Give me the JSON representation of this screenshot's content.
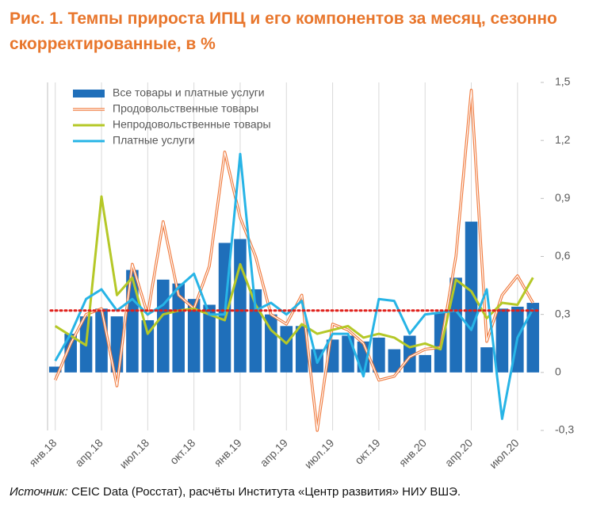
{
  "chart_data": {
    "type": "bar-line",
    "title": "Рис. 1. Темпы прироста ИПЦ и его компонентов за месяц, сезонно скорректированные, в %",
    "source_label": "Источник:",
    "source": "CEIC Data (Росстат), расчёты Института «Центр развития» НИУ ВШЭ.",
    "categories": [
      "янв.18",
      null,
      null,
      "апр.18",
      null,
      null,
      "июл.18",
      null,
      null,
      "окт.18",
      null,
      null,
      "янв.19",
      null,
      null,
      "апр.19",
      null,
      null,
      "июл.19",
      null,
      null,
      "окт.19",
      null,
      null,
      "янв.20",
      null,
      null,
      "апр.20",
      null,
      null,
      "июл.20",
      null
    ],
    "series": [
      {
        "name": "Все товары и платные услуги",
        "kind": "bar",
        "color": "#1f6fba",
        "values": [
          0.03,
          0.2,
          0.29,
          0.33,
          0.29,
          0.53,
          0.27,
          0.48,
          0.46,
          0.38,
          0.35,
          0.67,
          0.69,
          0.43,
          0.3,
          0.24,
          0.24,
          0.12,
          0.17,
          0.19,
          0.16,
          0.18,
          0.12,
          0.19,
          0.09,
          0.31,
          0.49,
          0.78,
          0.13,
          0.33,
          0.34,
          0.36
        ]
      },
      {
        "name": "Продовольственные товары",
        "kind": "hollow-line",
        "color": "#f07b3f",
        "values": [
          -0.04,
          0.15,
          0.3,
          0.33,
          -0.07,
          0.56,
          0.3,
          0.78,
          0.4,
          0.33,
          0.55,
          1.14,
          0.8,
          0.6,
          0.3,
          0.25,
          0.4,
          -0.3,
          0.25,
          0.22,
          0.15,
          -0.04,
          -0.02,
          0.08,
          0.12,
          0.13,
          0.6,
          1.46,
          0.16,
          0.4,
          0.5,
          0.36
        ]
      },
      {
        "name": "Непродовольственные товары",
        "kind": "line",
        "color": "#b5c827",
        "values": [
          0.24,
          0.19,
          0.14,
          0.91,
          0.4,
          0.49,
          0.2,
          0.3,
          0.32,
          0.33,
          0.3,
          0.27,
          0.56,
          0.35,
          0.22,
          0.15,
          0.25,
          0.2,
          0.22,
          0.24,
          0.18,
          0.2,
          0.18,
          0.13,
          0.15,
          0.12,
          0.48,
          0.42,
          0.28,
          0.36,
          0.35,
          0.49
        ]
      },
      {
        "name": "Платные услуги",
        "kind": "line",
        "color": "#27b4e6",
        "values": [
          0.06,
          0.2,
          0.38,
          0.43,
          0.32,
          0.38,
          0.3,
          0.35,
          0.44,
          0.51,
          0.3,
          0.3,
          1.13,
          0.32,
          0.36,
          0.3,
          0.37,
          0.05,
          0.2,
          0.2,
          -0.02,
          0.38,
          0.37,
          0.2,
          0.3,
          0.31,
          0.32,
          0.22,
          0.43,
          -0.24,
          0.18,
          0.33
        ]
      }
    ],
    "reference_line": 0.32,
    "reference_color": "#e0201b",
    "ylim": [
      -0.3,
      1.5
    ],
    "yticks": [
      {
        "value": -0.3,
        "label": "-0,3"
      },
      0,
      {
        "value": 0.3,
        "label": "0,3"
      },
      {
        "value": 0.6,
        "label": "0,6"
      },
      {
        "value": 0.9,
        "label": "0,9"
      },
      {
        "value": 1.2,
        "label": "1,2"
      },
      {
        "value": 1.5,
        "label": "1,5"
      }
    ],
    "legend": "upper left"
  }
}
